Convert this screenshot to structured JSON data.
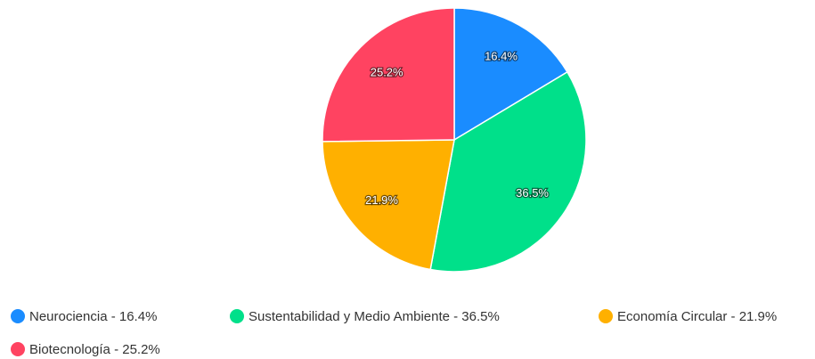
{
  "chart_data": {
    "type": "pie",
    "categories": [
      "Neurociencia - 16.4%",
      "Sustentabilidad y Medio Ambiente - 36.5%",
      "Economía Circular - 21.9%",
      "Biotecnología - 25.2%"
    ],
    "values": [
      16.4,
      36.5,
      21.9,
      25.2
    ],
    "value_labels": [
      "16.4%",
      "36.5%",
      "21.9%",
      "25.2%"
    ],
    "colors": [
      "#1a8cff",
      "#00e08a",
      "#ffb000",
      "#ff4361"
    ],
    "legend": "bottom"
  }
}
